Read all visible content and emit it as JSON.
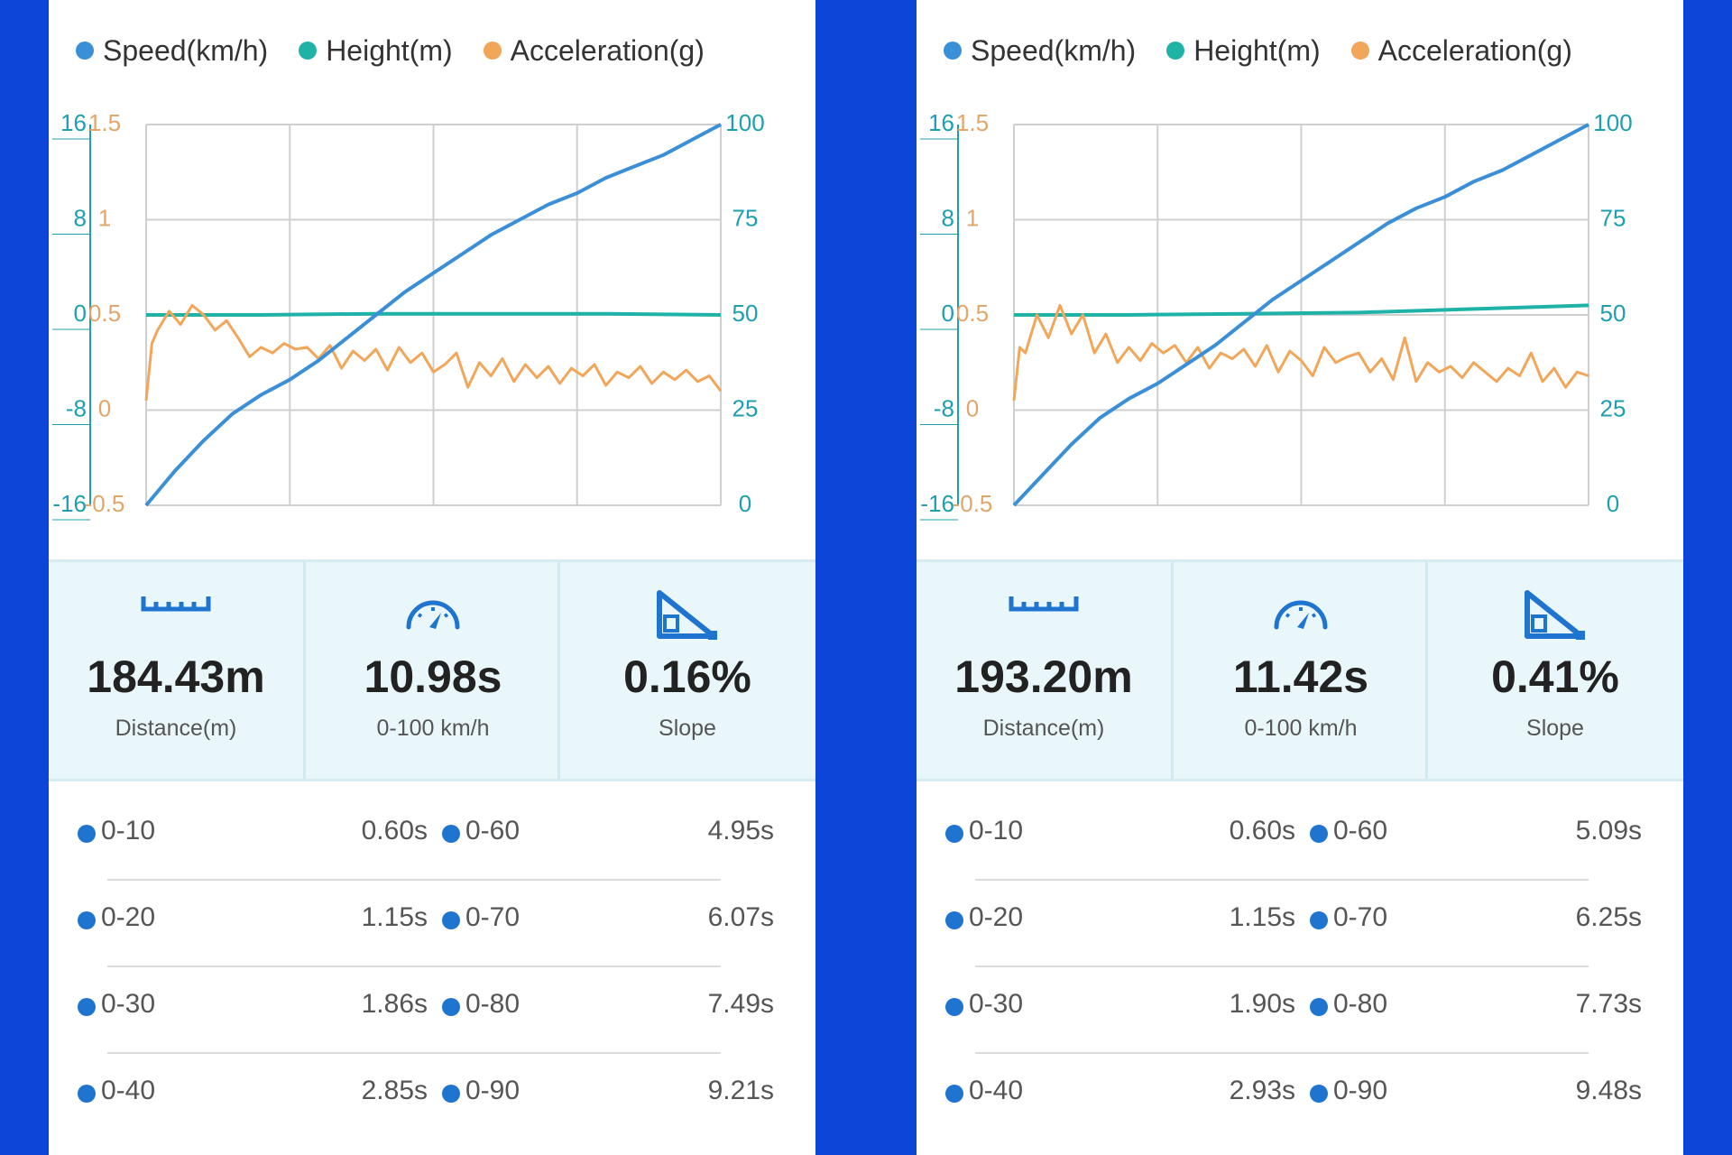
{
  "legend": [
    {
      "label": "Speed(km/h)",
      "color": "#3b8fd6"
    },
    {
      "label": "Height(m)",
      "color": "#1fb3a8"
    },
    {
      "label": "Acceleration(g)",
      "color": "#f2a65a"
    }
  ],
  "axis_ticks": {
    "height": [
      "16",
      "8",
      "0",
      "-8",
      "-16"
    ],
    "acceleration": [
      "1.5",
      "1",
      "0.5",
      "0",
      "-0.5"
    ],
    "speed": [
      "100",
      "75",
      "50",
      "25",
      "0"
    ]
  },
  "colors": {
    "height_axis": "#1e9fb0",
    "accel_axis": "#e2a66b",
    "speed_axis": "#1e9fb0",
    "grid": "#cfcfcf",
    "stats_bg": "#e9f7fb",
    "icon": "#1f74d0",
    "split_dot": "#1f74d0"
  },
  "stat_labels": {
    "distance": "Distance(m)",
    "accel": "0-100 km/h",
    "slope": "Slope"
  },
  "stat_icons": {
    "distance": "ruler-icon",
    "accel": "speedometer-icon",
    "slope": "slope-triangle-icon"
  },
  "panels": [
    {
      "stats": {
        "distance": "184.43m",
        "accel": "10.98s",
        "slope": "0.16%"
      },
      "splits": [
        [
          {
            "label": "0-10",
            "value": "0.60s"
          },
          {
            "label": "0-60",
            "value": "4.95s"
          }
        ],
        [
          {
            "label": "0-20",
            "value": "1.15s"
          },
          {
            "label": "0-70",
            "value": "6.07s"
          }
        ],
        [
          {
            "label": "0-30",
            "value": "1.86s"
          },
          {
            "label": "0-80",
            "value": "7.49s"
          }
        ],
        [
          {
            "label": "0-40",
            "value": "2.85s"
          },
          {
            "label": "0-90",
            "value": "9.21s"
          }
        ]
      ]
    },
    {
      "stats": {
        "distance": "193.20m",
        "accel": "11.42s",
        "slope": "0.41%"
      },
      "splits": [
        [
          {
            "label": "0-10",
            "value": "0.60s"
          },
          {
            "label": "0-60",
            "value": "5.09s"
          }
        ],
        [
          {
            "label": "0-20",
            "value": "1.15s"
          },
          {
            "label": "0-70",
            "value": "6.25s"
          }
        ],
        [
          {
            "label": "0-30",
            "value": "1.90s"
          },
          {
            "label": "0-80",
            "value": "7.73s"
          }
        ],
        [
          {
            "label": "0-40",
            "value": "2.93s"
          },
          {
            "label": "0-90",
            "value": "9.48s"
          }
        ]
      ]
    }
  ],
  "chart_data": [
    {
      "type": "line",
      "xlim": [
        0,
        1
      ],
      "ylim_speed": [
        0,
        100
      ],
      "ylim_height": [
        -16,
        16
      ],
      "ylim_accel": [
        -0.5,
        1.5
      ],
      "grid": true,
      "legend_position": "top",
      "series": [
        {
          "name": "Speed(km/h)",
          "axis": "speed",
          "x": [
            0,
            0.05,
            0.1,
            0.15,
            0.2,
            0.25,
            0.3,
            0.35,
            0.4,
            0.45,
            0.5,
            0.55,
            0.6,
            0.65,
            0.7,
            0.75,
            0.8,
            0.85,
            0.9,
            0.95,
            1.0
          ],
          "y": [
            0,
            9,
            17,
            24,
            29,
            33,
            38,
            44,
            50,
            56,
            61,
            66,
            71,
            75,
            79,
            82,
            86,
            89,
            92,
            96,
            100
          ]
        },
        {
          "name": "Height(m)",
          "axis": "height",
          "x": [
            0,
            0.2,
            0.4,
            0.6,
            0.8,
            1.0
          ],
          "y": [
            0.0,
            0.0,
            0.1,
            0.1,
            0.1,
            0.0
          ]
        },
        {
          "name": "Acceleration(g)",
          "axis": "accel",
          "x": [
            0,
            0.01,
            0.02,
            0.04,
            0.06,
            0.08,
            0.1,
            0.12,
            0.14,
            0.16,
            0.18,
            0.2,
            0.22,
            0.24,
            0.26,
            0.28,
            0.3,
            0.32,
            0.34,
            0.36,
            0.38,
            0.4,
            0.42,
            0.44,
            0.46,
            0.48,
            0.5,
            0.52,
            0.54,
            0.56,
            0.58,
            0.6,
            0.62,
            0.64,
            0.66,
            0.68,
            0.7,
            0.72,
            0.74,
            0.76,
            0.78,
            0.8,
            0.82,
            0.84,
            0.86,
            0.88,
            0.9,
            0.92,
            0.94,
            0.96,
            0.98,
            1.0
          ],
          "y": [
            0.05,
            0.35,
            0.42,
            0.52,
            0.45,
            0.55,
            0.5,
            0.42,
            0.47,
            0.38,
            0.28,
            0.33,
            0.3,
            0.35,
            0.32,
            0.33,
            0.27,
            0.34,
            0.22,
            0.31,
            0.26,
            0.32,
            0.21,
            0.33,
            0.25,
            0.3,
            0.2,
            0.24,
            0.3,
            0.12,
            0.25,
            0.18,
            0.27,
            0.15,
            0.24,
            0.17,
            0.23,
            0.14,
            0.22,
            0.18,
            0.24,
            0.13,
            0.2,
            0.17,
            0.23,
            0.14,
            0.2,
            0.16,
            0.21,
            0.15,
            0.18,
            0.1
          ]
        }
      ]
    },
    {
      "type": "line",
      "xlim": [
        0,
        1
      ],
      "ylim_speed": [
        0,
        100
      ],
      "ylim_height": [
        -16,
        16
      ],
      "ylim_accel": [
        -0.5,
        1.5
      ],
      "grid": true,
      "legend_position": "top",
      "series": [
        {
          "name": "Speed(km/h)",
          "axis": "speed",
          "x": [
            0,
            0.05,
            0.1,
            0.15,
            0.2,
            0.25,
            0.3,
            0.35,
            0.4,
            0.45,
            0.5,
            0.55,
            0.6,
            0.65,
            0.7,
            0.75,
            0.8,
            0.85,
            0.9,
            0.95,
            1.0
          ],
          "y": [
            0,
            8,
            16,
            23,
            28,
            32,
            37,
            42,
            48,
            54,
            59,
            64,
            69,
            74,
            78,
            81,
            85,
            88,
            92,
            96,
            100
          ]
        },
        {
          "name": "Height(m)",
          "axis": "height",
          "x": [
            0,
            0.2,
            0.4,
            0.6,
            0.8,
            1.0
          ],
          "y": [
            0.0,
            0.0,
            0.1,
            0.2,
            0.5,
            0.8
          ]
        },
        {
          "name": "Acceleration(g)",
          "axis": "accel",
          "x": [
            0,
            0.01,
            0.02,
            0.04,
            0.06,
            0.08,
            0.1,
            0.12,
            0.14,
            0.16,
            0.18,
            0.2,
            0.22,
            0.24,
            0.26,
            0.28,
            0.3,
            0.32,
            0.34,
            0.36,
            0.38,
            0.4,
            0.42,
            0.44,
            0.46,
            0.48,
            0.5,
            0.52,
            0.54,
            0.56,
            0.58,
            0.6,
            0.62,
            0.64,
            0.66,
            0.68,
            0.7,
            0.72,
            0.74,
            0.76,
            0.78,
            0.8,
            0.82,
            0.84,
            0.86,
            0.88,
            0.9,
            0.92,
            0.94,
            0.96,
            0.98,
            1.0
          ],
          "y": [
            0.05,
            0.33,
            0.3,
            0.5,
            0.38,
            0.55,
            0.4,
            0.5,
            0.3,
            0.4,
            0.25,
            0.33,
            0.26,
            0.35,
            0.3,
            0.34,
            0.25,
            0.33,
            0.22,
            0.3,
            0.27,
            0.32,
            0.23,
            0.34,
            0.2,
            0.31,
            0.26,
            0.18,
            0.33,
            0.25,
            0.28,
            0.3,
            0.2,
            0.27,
            0.16,
            0.38,
            0.15,
            0.25,
            0.2,
            0.23,
            0.17,
            0.25,
            0.2,
            0.15,
            0.22,
            0.18,
            0.3,
            0.15,
            0.22,
            0.12,
            0.2,
            0.18
          ]
        }
      ]
    }
  ]
}
